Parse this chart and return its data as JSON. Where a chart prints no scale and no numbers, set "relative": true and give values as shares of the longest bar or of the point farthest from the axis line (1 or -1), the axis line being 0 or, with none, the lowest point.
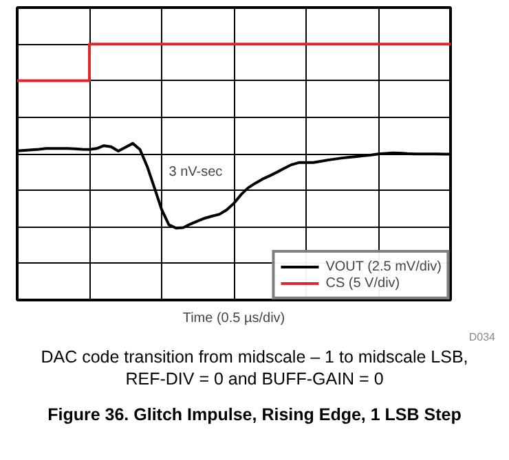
{
  "chart_data": {
    "type": "line",
    "relative": true,
    "title": "Figure 36. Glitch Impulse, Rising Edge, 1 LSB Step",
    "xlabel": "Time (0.5 µs/div)",
    "categories": [
      null,
      null,
      null,
      null,
      null,
      null,
      null,
      null,
      null,
      null,
      null,
      null,
      null,
      null,
      null,
      null,
      null,
      null,
      null,
      null,
      null,
      null,
      null,
      null,
      null,
      null,
      null,
      null,
      null,
      null,
      null,
      null,
      null,
      null,
      null,
      null,
      null,
      null,
      null,
      null,
      null,
      null,
      null,
      null,
      null,
      null,
      null,
      null,
      null,
      null,
      null,
      null,
      null,
      null,
      null,
      null,
      null,
      null,
      null,
      null,
      null
    ],
    "grid": true,
    "legend": "bottom right",
    "annotations": [
      "3 nV-sec",
      "D034",
      "DAC code transition from midscale – 1 to midscale LSB,",
      "REF-DIV = 0 and BUFF-GAIN = 0"
    ],
    "series": [
      {
        "name": "VOUT (2.5 mV/div)",
        "color": "#000000",
        "values": [
          0.583,
          0.585,
          0.587,
          0.589,
          0.592,
          0.592,
          0.592,
          0.592,
          0.591,
          0.589,
          0.588,
          0.592,
          0.603,
          0.599,
          0.582,
          0.597,
          0.612,
          0.588,
          0.522,
          0.439,
          0.354,
          0.294,
          0.281,
          0.283,
          0.297,
          0.309,
          0.32,
          0.328,
          0.335,
          0.352,
          0.378,
          0.412,
          0.439,
          0.457,
          0.473,
          0.486,
          0.5,
          0.515,
          0.529,
          0.537,
          0.537,
          0.537,
          0.542,
          0.547,
          0.551,
          0.555,
          0.558,
          0.561,
          0.564,
          0.567,
          0.571,
          0.573,
          0.575,
          0.574,
          0.572,
          0.571,
          0.571,
          0.571,
          0.571,
          0.57,
          0.57
        ]
      },
      {
        "name": "CS (5 V/div)",
        "color": "#e0262a",
        "type": "step",
        "values": [
          0.857,
          0.857,
          0.857,
          0.857,
          0.857,
          0.857,
          0.857,
          0.857,
          0.857,
          0.857,
          1,
          1,
          1,
          1,
          1,
          1,
          1,
          1,
          1,
          1,
          1,
          1,
          1,
          1,
          1,
          1,
          1,
          1,
          1,
          1,
          1,
          1,
          1,
          1,
          1,
          1,
          1,
          1,
          1,
          1,
          1,
          1,
          1,
          1,
          1,
          1,
          1,
          1,
          1,
          1,
          1,
          1,
          1,
          1,
          1,
          1,
          1,
          1,
          1,
          1,
          1
        ]
      }
    ]
  }
}
